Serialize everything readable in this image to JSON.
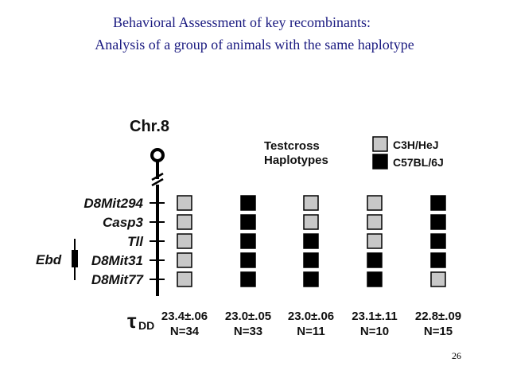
{
  "slide": {
    "title_line1": "Behavioral Assessment of key recombinants:",
    "title_line2": "Analysis of a group of animals with the same haplotype",
    "slide_number": "26"
  },
  "figure": {
    "chromosome_label": "Chr.8",
    "region_label": "Ebd",
    "heading_line1": "Testcross",
    "heading_line2": "Haplotypes",
    "tau_symbol": "τ",
    "tau_subscript": "DD",
    "legend": [
      {
        "label": "C3H/HeJ",
        "color": "#c8c8c8"
      },
      {
        "label": "C57BL/6J",
        "color": "#000000"
      }
    ],
    "loci": [
      "D8Mit294",
      "Casp3",
      "Tll",
      "D8Mit31",
      "D8Mit77"
    ],
    "haplotypes": [
      {
        "genotype": [
          "C3H/HeJ",
          "C3H/HeJ",
          "C3H/HeJ",
          "C3H/HeJ",
          "C3H/HeJ"
        ],
        "tau": "23.4±.06",
        "n": "N=34"
      },
      {
        "genotype": [
          "C57BL/6J",
          "C57BL/6J",
          "C57BL/6J",
          "C57BL/6J",
          "C57BL/6J"
        ],
        "tau": "23.0±.05",
        "n": "N=33"
      },
      {
        "genotype": [
          "C3H/HeJ",
          "C3H/HeJ",
          "C57BL/6J",
          "C57BL/6J",
          "C57BL/6J"
        ],
        "tau": "23.0±.06",
        "n": "N=11"
      },
      {
        "genotype": [
          "C3H/HeJ",
          "C3H/HeJ",
          "C3H/HeJ",
          "C57BL/6J",
          "C57BL/6J"
        ],
        "tau": "23.1±.11",
        "n": "N=10"
      },
      {
        "genotype": [
          "C57BL/6J",
          "C57BL/6J",
          "C57BL/6J",
          "C57BL/6J",
          "C3H/HeJ"
        ],
        "tau": "22.8±.09",
        "n": "N=15"
      }
    ]
  }
}
